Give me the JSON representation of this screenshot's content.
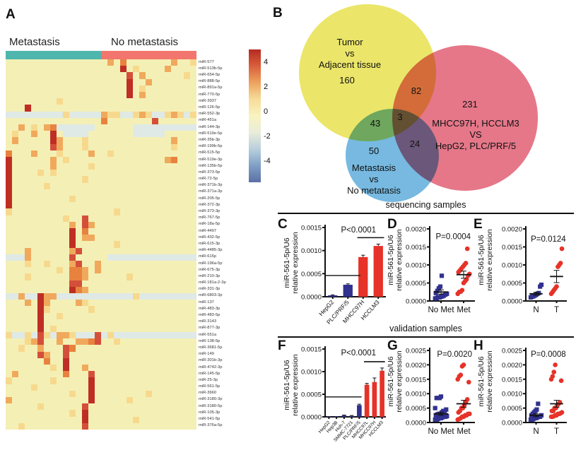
{
  "figure": {
    "letters": {
      "A": "A",
      "B": "B",
      "C": "C",
      "D": "D",
      "E": "E",
      "F": "F",
      "G": "G",
      "H": "H"
    }
  },
  "axis_label": {
    "line1": "miR-561-5p/U6",
    "line2": "relative expression"
  },
  "sections": {
    "row1": "sequencing samples",
    "row2": "validation samples"
  },
  "panel_a": {
    "group1": "Metastasis",
    "group2": "No metastasis",
    "group1_color": "#4fb6ad",
    "group2_color": "#f2766d",
    "colorbar_ticks": [
      "4",
      "2",
      "0",
      "-2",
      "-4"
    ]
  },
  "chart_data": [
    {
      "id": "A",
      "type": "heatmap",
      "description": "Differentially expressed miRNAs, metastasis vs no metastasis; values scaled -4 to +4",
      "palette": {
        ".": "#f4f0b5",
        "L": "#f7d98e",
        "o": "#f0a95c",
        "O": "#e8823f",
        "R": "#d44f3a",
        "D": "#bf2e24",
        "b": "#dfe9e6"
      },
      "labels": [
        "miR-577",
        "miR-513b-5p",
        "miR-654-5p",
        "miR-888-5p",
        "miR-891a-5p",
        "miR-770-5p",
        "miR-3937",
        "miR-126-5p",
        "miR-552-3p",
        "miR-451a",
        "miR-144-3p",
        "miR-519e-5p",
        "miR-35b-3p",
        "miR-199b-5p",
        "miR-515-5p",
        "miR-519e-3p",
        "miR-135b-5p",
        "miR-373-5p",
        "miR-72-5p",
        "miR-371b-3p",
        "miR-371a-3p",
        "miR-205-5p",
        "miR-372-3p",
        "miR-373-3p",
        "miR-767-5p",
        "miR-18a-5p",
        "miR-4497",
        "miR-432-5p",
        "miR-615-3p",
        "miR-4485-3p",
        "miR-615p",
        "miR-196a-5p",
        "miR-675-3p",
        "miR-210-3p",
        "miR-181a-2-3p",
        "miR-331-3p",
        "miR-6803-3p",
        "miR-137",
        "miR-483-3p",
        "miR-483-5p",
        "miR-3143",
        "miR-877-3p",
        "miR-551a",
        "miR-138-5p",
        "miR-3681-5p",
        "miR-149",
        "miR-301b-3p",
        "miR-4742-3p",
        "miR-145-5p",
        "miR-25-3p",
        "miR-561-5p",
        "miR-3660",
        "miR-3180-3p",
        "miR-3180-5p",
        "miR-105-3p",
        "miR-541-5p",
        "miR-376a-5p"
      ],
      "rows": [
        "................o.O.......o..L",
        "..................D.L....o....",
        "...................R.o......L.",
        "...................D..o.......",
        "...................D.L........",
        "...................D.o........",
        "........L.....................",
        "...D..........................",
        "bbbbbbbbbLbbbbboLLbbLoLbbLoLbL",
        "...............O.......R......",
        "..o.L.oObbbbbb......bbbbbbbbbb",
        ".L..o..D.bbbb.......bbbbb.....",
        ".o.....Do...L.............o...",
        ".......Ro...L.............L...",
        "O...o...L....o..L.............",
        "D......o.L...............oO...",
        "D......o.....L................",
        "D....L.L......................",
        "D...........L.................",
        "D.....L.......................",
        "D.............................",
        "D.........L...................",
        "D.............................",
        "L................L............",
        ".........L..R.................",
        "..........o.Ro................",
        "..........D.O.................",
        "..........D.oo................",
        "..........D......L............",
        "...o......oR..................",
        "bbbo......R.....bbbbbbbbbbbbbb",
        "...L..L...oR..o...............",
        "........L.OOo.o...............",
        "...L......OOo......L..........",
        "..........RR..................",
        "..........DOo.................",
        "bbobbDoobbbbbbbbbbbbLbbbbbbbbb",
        "...o.Do....oL.................",
        ".....DL......L................",
        ".....D..L.....................",
        ".....D........................",
        ".....D.L......................",
        "LbbLbRLbooLbbbRbLbbbbbbbbbbbbb",
        "...LoR..o..ooOR..L............",
        "..L..o...RO...................",
        ".....Ro..R....................",
        "......O..D....................",
        ".......L.D..o.................",
        ".o.......O...R................",
        "L......L.....D................",
        "....L........D................",
        "..........L..D........L.......",
        "o............D.....L..........",
        ".....L......R.................",
        "..........L.D.................",
        "............D.......L.........",
        "..L.........R................."
      ]
    },
    {
      "id": "B",
      "type": "venn",
      "sets": [
        {
          "lines": [
            "Tumor",
            "vs",
            "Adjacent tissue"
          ],
          "count": "160",
          "color": "#e7e24f"
        },
        {
          "lines": [
            "MHCC97H, HCCLM3",
            "VS",
            "HepG2, PLC/PRF/5"
          ],
          "count": "231",
          "color": "#e05f74"
        },
        {
          "lines": [
            "Metastasis",
            "vs",
            "No metatasis"
          ],
          "count": "50",
          "color": "#5fadda"
        }
      ],
      "overlaps": {
        "yellow_red": "82",
        "yellow_blue": "43",
        "blue_red": "24",
        "center": "3"
      },
      "center_color": "#e02f1f"
    },
    {
      "id": "C",
      "type": "bar",
      "ymax": 0.0015,
      "ytick_vals": [
        0,
        0.0005,
        0.001,
        0.0015
      ],
      "yticks": [
        "0.0000",
        "0.0005",
        "0.0010",
        "0.0015"
      ],
      "categories": [
        "HepG2",
        "PLC/PRF/5",
        "MHCC97H",
        "HCCLM3"
      ],
      "values": [
        3e-05,
        0.00026,
        0.00086,
        0.0011
      ],
      "errors": [
        1e-05,
        2e-05,
        4e-05,
        4e-05
      ],
      "colors": [
        "#31318f",
        "#31318f",
        "#e63228",
        "#e63228"
      ],
      "refline": 0.00046,
      "refline_frac": 0.58,
      "sig": {
        "from": 2,
        "to": 3,
        "y": 0.00128
      },
      "p": "P<0.0001",
      "p_x": 0.55,
      "p_y": 0.00139
    },
    {
      "id": "D",
      "type": "scatter",
      "ymax": 0.002,
      "ytick_vals": [
        0,
        0.0005,
        0.001,
        0.0015,
        0.002
      ],
      "yticks": [
        "0.0000",
        "0.0005",
        "0.0010",
        "0.0015",
        "0.0020"
      ],
      "categories": [
        "No Met",
        "Met"
      ],
      "groups": [
        {
          "name": "No Met",
          "marker": "square",
          "color": "#31318f",
          "mean": 0.00025,
          "sem": 6e-05,
          "values": [
            7e-05,
            8e-05,
            0.0001,
            0.0001,
            0.00012,
            0.00013,
            0.00015,
            0.00018,
            0.0002,
            0.00022,
            0.00028,
            0.00035,
            0.0004,
            0.0007
          ]
        },
        {
          "name": "Met",
          "marker": "circle",
          "color": "#e63228",
          "mean": 0.00073,
          "sem": 0.0001,
          "values": [
            0.0002,
            0.00025,
            0.00026,
            0.0003,
            0.0005,
            0.00055,
            0.0006,
            0.0007,
            0.00075,
            0.0008,
            0.00085,
            0.0009,
            0.00095,
            0.001,
            0.00105,
            0.00145
          ]
        }
      ],
      "p": "P=0.0004",
      "p_x": 0.52,
      "p_y": 0.00172
    },
    {
      "id": "E",
      "type": "scatter",
      "ymax": 0.002,
      "ytick_vals": [
        0,
        0.0005,
        0.001,
        0.0015,
        0.002
      ],
      "yticks": [
        "0.0000",
        "0.0005",
        "0.0010",
        "0.0015",
        "0.0020"
      ],
      "categories": [
        "N",
        "T"
      ],
      "groups": [
        {
          "name": "N",
          "marker": "square",
          "color": "#31318f",
          "mean": 0.0002,
          "sem": 4e-05,
          "values": [
            0.0001,
            0.00012,
            0.00013,
            0.00015,
            0.00017,
            0.0002,
            0.00022,
            0.0004,
            0.00045
          ]
        },
        {
          "name": "T",
          "marker": "circle",
          "color": "#e63228",
          "mean": 0.00068,
          "sem": 0.00017,
          "values": [
            0.0002,
            0.00025,
            0.0003,
            0.00035,
            0.0004,
            0.00095,
            0.001,
            0.00105,
            0.00145
          ]
        }
      ],
      "p": "P=0.0124",
      "p_x": 0.55,
      "p_y": 0.00165
    },
    {
      "id": "F",
      "type": "bar",
      "ymax": 0.0015,
      "ytick_vals": [
        0,
        0.0005,
        0.001,
        0.0015
      ],
      "yticks": [
        "0.0000",
        "0.0005",
        "0.0010",
        "0.0015"
      ],
      "categories": [
        "HepG2",
        "Hep3B",
        "Huh-7",
        "SMMC-7721",
        "PLC/PRF/5",
        "MHCC97L",
        "MHCC97H",
        "HCCLM3"
      ],
      "values": [
        1e-05,
        1e-05,
        3e-05,
        2e-05,
        0.00026,
        0.00071,
        0.00077,
        0.00102
      ],
      "errors": [
        0,
        0,
        1e-05,
        1e-05,
        2e-05,
        3e-05,
        9e-05,
        6e-05
      ],
      "colors": [
        "#31318f",
        "#31318f",
        "#31318f",
        "#31318f",
        "#31318f",
        "#e63228",
        "#e63228",
        "#e63228"
      ],
      "refline": 0.00044,
      "refline_frac": 0.6,
      "sig": {
        "from": 5,
        "to": 7,
        "y": 0.00122
      },
      "p": "P<0.0001",
      "p_x": 0.55,
      "p_y": 0.00136
    },
    {
      "id": "G",
      "type": "scatter",
      "ymax": 0.0025,
      "ytick_vals": [
        0,
        0.0005,
        0.001,
        0.0015,
        0.002,
        0.0025
      ],
      "yticks": [
        "0.0000",
        "0.0005",
        "0.0010",
        "0.0015",
        "0.0020",
        "0.0025"
      ],
      "categories": [
        "No Met",
        "Met"
      ],
      "groups": [
        {
          "name": "No Met",
          "marker": "square",
          "color": "#31318f",
          "mean": 0.0003,
          "sem": 5e-05,
          "values": [
            0.0001,
            0.0001,
            0.00012,
            0.00015,
            0.00015,
            0.00018,
            0.0002,
            0.0002,
            0.00022,
            0.00025,
            0.00028,
            0.0003,
            0.0003,
            0.00035,
            0.0004,
            0.0004,
            0.00045,
            0.0005,
            0.00085,
            0.00085,
            0.00085,
            0.0009
          ]
        },
        {
          "name": "Met",
          "marker": "circle",
          "color": "#e63228",
          "mean": 0.00065,
          "sem": 0.00012,
          "values": [
            0.0001,
            0.00012,
            0.00015,
            0.0002,
            0.0002,
            0.00025,
            0.00025,
            0.0003,
            0.0003,
            0.00035,
            0.0004,
            0.0005,
            0.0005,
            0.0006,
            0.0007,
            0.0008,
            0.0014,
            0.0015,
            0.0016,
            0.00165,
            0.00195,
            0.002
          ]
        }
      ],
      "p": "P=0.0020",
      "p_x": 0.55,
      "p_y": 0.00228
    },
    {
      "id": "H",
      "type": "scatter",
      "ymax": 0.0025,
      "ytick_vals": [
        0,
        0.0005,
        0.001,
        0.0015,
        0.002,
        0.0025
      ],
      "yticks": [
        "0.0000",
        "0.0005",
        "0.0010",
        "0.0015",
        "0.0020",
        "0.0025"
      ],
      "categories": [
        "N",
        "T"
      ],
      "groups": [
        {
          "name": "N",
          "marker": "square",
          "color": "#31318f",
          "mean": 0.00025,
          "sem": 5e-05,
          "values": [
            0.0001,
            0.0001,
            0.00012,
            0.00015,
            0.00015,
            0.00018,
            0.0002,
            0.0002,
            0.00025,
            0.00025,
            0.0003,
            0.00035,
            0.0004,
            0.00045,
            0.00065
          ]
        },
        {
          "name": "T",
          "marker": "circle",
          "color": "#e63228",
          "mean": 0.00065,
          "sem": 0.00012,
          "values": [
            0.0002,
            0.0002,
            0.00022,
            0.00025,
            0.00025,
            0.0003,
            0.0003,
            0.00032,
            0.00035,
            0.0004,
            0.0004,
            0.0005,
            0.0005,
            0.0006,
            0.00065,
            0.0007,
            0.00145,
            0.0015,
            0.0016,
            0.00175,
            0.002
          ]
        }
      ],
      "p": "P=0.0008",
      "p_x": 0.55,
      "p_y": 0.00228
    }
  ]
}
